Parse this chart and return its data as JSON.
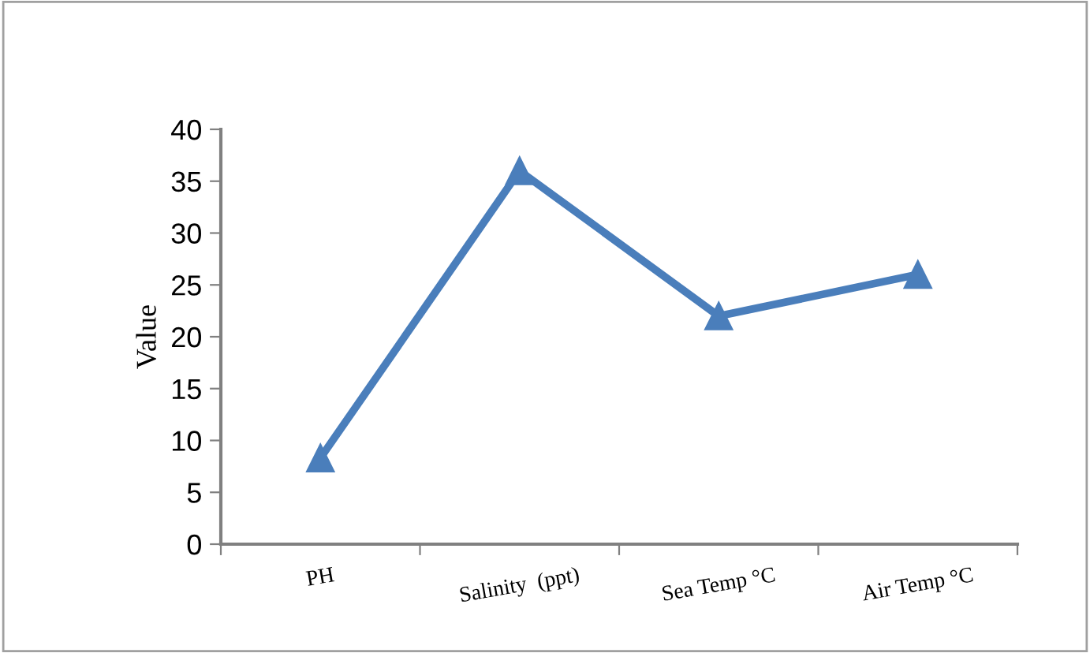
{
  "chart_data": {
    "type": "line",
    "ylabel": "Value",
    "categories": [
      "PH",
      "Salinity  (ppt)",
      "Sea Temp °C",
      "Air Temp °C"
    ],
    "series": [
      {
        "color": "#4a7ebb",
        "values": [
          8.3,
          36,
          22,
          26
        ]
      }
    ],
    "ylim": [
      0,
      40
    ],
    "yticks": [
      0,
      5,
      10,
      15,
      20,
      25,
      30,
      35,
      40
    ],
    "marker": "triangle",
    "line_style": "solid",
    "grid": false,
    "legend": false
  }
}
